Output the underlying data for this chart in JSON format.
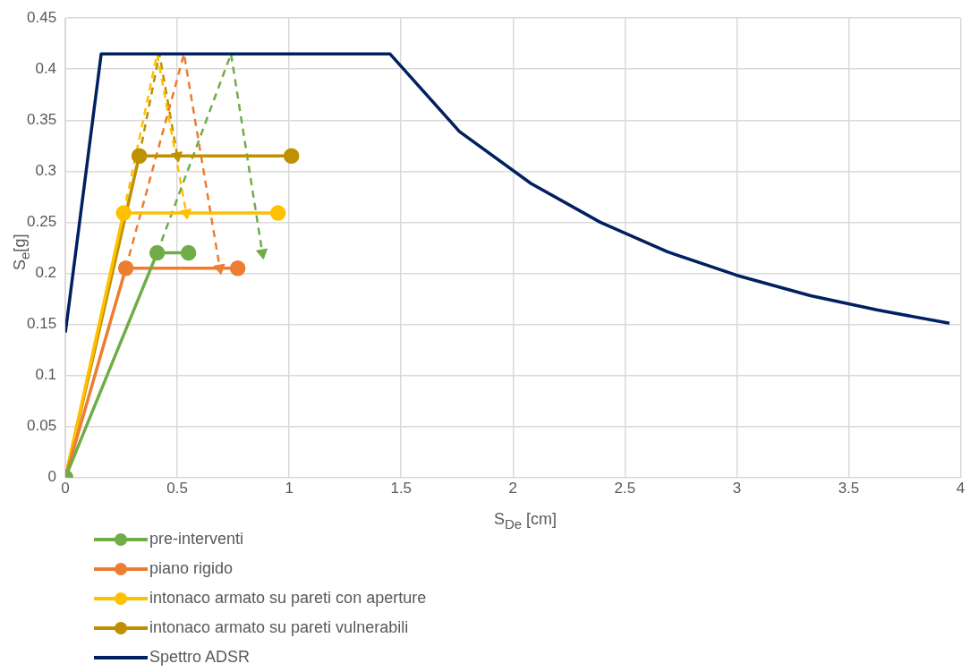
{
  "chart_data": {
    "type": "line",
    "xlabel": "S$_{De}$ [cm]",
    "ylabel": "S$_{e}$[g]",
    "xlim": [
      0,
      4
    ],
    "xticks": [
      0,
      0.5,
      1,
      1.5,
      2,
      2.5,
      3,
      3.5,
      4
    ],
    "ylim": [
      0,
      0.45
    ],
    "yticks": [
      0,
      0.05,
      0.1,
      0.15,
      0.2,
      0.25,
      0.3,
      0.35,
      0.4,
      0.45
    ],
    "grid": true,
    "legend": "bottom left",
    "series": [
      {
        "name": "pre-interventi",
        "color": "#70ad47",
        "marker": "circle",
        "x": [
          0,
          0.41,
          0.55
        ],
        "values": [
          0,
          0.22,
          0.22
        ]
      },
      {
        "name": "piano rigido",
        "color": "#ed7d31",
        "marker": "circle",
        "x": [
          0,
          0.27,
          0.77
        ],
        "values": [
          0,
          0.205,
          0.205
        ]
      },
      {
        "name": "intonaco armato su pareti con aperture",
        "color": "#ffc000",
        "marker": "circle",
        "x": [
          0,
          0.26,
          0.95
        ],
        "values": [
          0,
          0.259,
          0.259
        ]
      },
      {
        "name": "intonaco armato su pareti vulnerabili",
        "color": "#bf9000",
        "marker": "circle",
        "x": [
          0,
          0.33,
          1.01
        ],
        "values": [
          0,
          0.315,
          0.315
        ]
      },
      {
        "name": "Spettro ADSR",
        "color": "#002060",
        "marker": "none",
        "x": [
          0,
          0.16,
          1.45,
          1.76,
          2.08,
          2.39,
          2.69,
          3.0,
          3.33,
          3.63,
          3.95
        ],
        "values": [
          0.142,
          0.415,
          0.415,
          0.339,
          0.288,
          0.25,
          0.221,
          0.198,
          0.178,
          0.164,
          0.151
        ]
      },
      {
        "color": "#70ad47",
        "marker": "none",
        "line_style": "dashed",
        "x": [
          0.41,
          0.74,
          0.88
        ],
        "values": [
          0.22,
          0.415,
          0.22
        ]
      },
      {
        "color": "#ed7d31",
        "marker": "none",
        "line_style": "dashed",
        "x": [
          0.27,
          0.53,
          0.69
        ],
        "values": [
          0.205,
          0.415,
          0.205
        ]
      },
      {
        "color": "#ffc000",
        "marker": "none",
        "line_style": "dashed",
        "x": [
          0.26,
          0.41,
          0.54
        ],
        "values": [
          0.259,
          0.415,
          0.259
        ]
      },
      {
        "color": "#bf9000",
        "marker": "none",
        "line_style": "dashed",
        "x": [
          0.33,
          0.42,
          0.5
        ],
        "values": [
          0.315,
          0.415,
          0.315
        ]
      },
      {
        "type": "scatter",
        "color": "#70ad47",
        "marker": "triangle",
        "x": [
          0.88
        ],
        "values": [
          0.22
        ]
      },
      {
        "type": "scatter",
        "color": "#ed7d31",
        "marker": "triangle",
        "x": [
          0.69
        ],
        "values": [
          0.205
        ]
      },
      {
        "type": "scatter",
        "color": "#ffc000",
        "marker": "triangle",
        "x": [
          0.54
        ],
        "values": [
          0.259
        ]
      },
      {
        "type": "scatter",
        "color": "#bf9000",
        "marker": "triangle",
        "x": [
          0.5
        ],
        "values": [
          0.315
        ]
      }
    ]
  }
}
